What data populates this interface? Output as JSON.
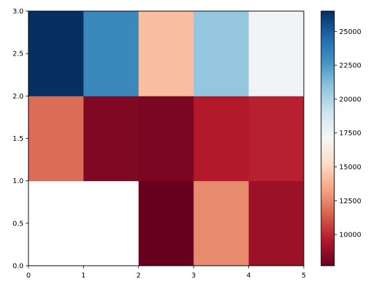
{
  "chart_data": {
    "type": "heatmap",
    "title": "",
    "xlabel": "",
    "ylabel": "",
    "xlim": [
      0,
      5
    ],
    "ylim": [
      0,
      3
    ],
    "x_ticks": [
      "0",
      "1",
      "2",
      "3",
      "4",
      "5"
    ],
    "y_ticks": [
      "0.0",
      "0.5",
      "1.0",
      "1.5",
      "2.0",
      "2.5",
      "3.0"
    ],
    "x_edges": [
      0,
      1,
      2,
      3,
      4,
      5
    ],
    "y_edges": [
      0,
      1,
      2,
      3
    ],
    "values": [
      [
        null,
        null,
        7700,
        12600,
        9000
      ],
      [
        11800,
        8300,
        8200,
        9600,
        9800
      ],
      [
        26500,
        23200,
        14200,
        20800,
        17400
      ]
    ],
    "colormap": "RdBu",
    "colorbar": {
      "vmin": 7700,
      "vmax": 26500,
      "ticks": [
        "10000",
        "12500",
        "15000",
        "17500",
        "20000",
        "22500",
        "25000"
      ],
      "tick_values": [
        10000,
        12500,
        15000,
        17500,
        20000,
        22500,
        25000
      ]
    },
    "grid": false,
    "legend": "none"
  }
}
